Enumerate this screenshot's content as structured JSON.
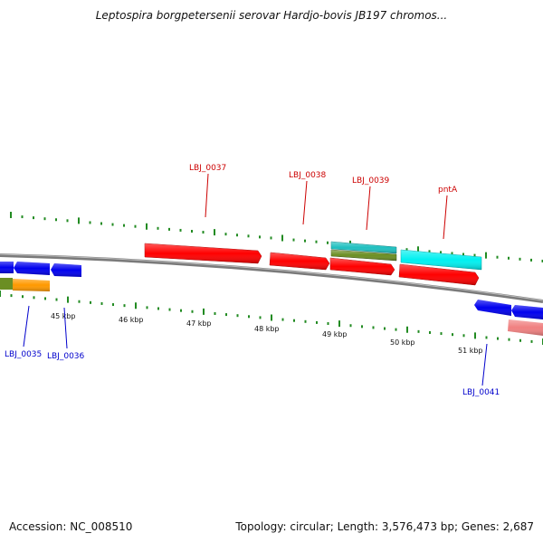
{
  "title": "Leptospira borgpetersenii serovar Hardjo-bovis JB197 chromos...",
  "footer": {
    "accession": "Accession: NC_008510",
    "summary": "Topology: circular; Length: 3,576,473 bp; Genes: 2,687"
  },
  "colors": {
    "red": "#ff0000",
    "blue": "#0000ee",
    "cyan": "#00f0f0",
    "teal": "#20c0c0",
    "olive": "#6b8e23",
    "orange": "#ff9900",
    "pink": "#f08080",
    "backbone": "#808080",
    "tick": "#228b22",
    "label_red": "#cc0000",
    "label_blue": "#0000cc"
  },
  "scale_labels": [
    "45 kbp",
    "46 kbp",
    "47 kbp",
    "48 kbp",
    "49 kbp",
    "50 kbp",
    "51 kbp"
  ],
  "gene_labels": [
    {
      "text": "LBJ_0037",
      "strand": "forward"
    },
    {
      "text": "LBJ_0038",
      "strand": "forward"
    },
    {
      "text": "LBJ_0039",
      "strand": "forward"
    },
    {
      "text": "pntA",
      "strand": "forward"
    },
    {
      "text": "LBJ_0035",
      "strand": "reverse"
    },
    {
      "text": "LBJ_0036",
      "strand": "reverse"
    },
    {
      "text": "LBJ_0041",
      "strand": "reverse"
    }
  ]
}
